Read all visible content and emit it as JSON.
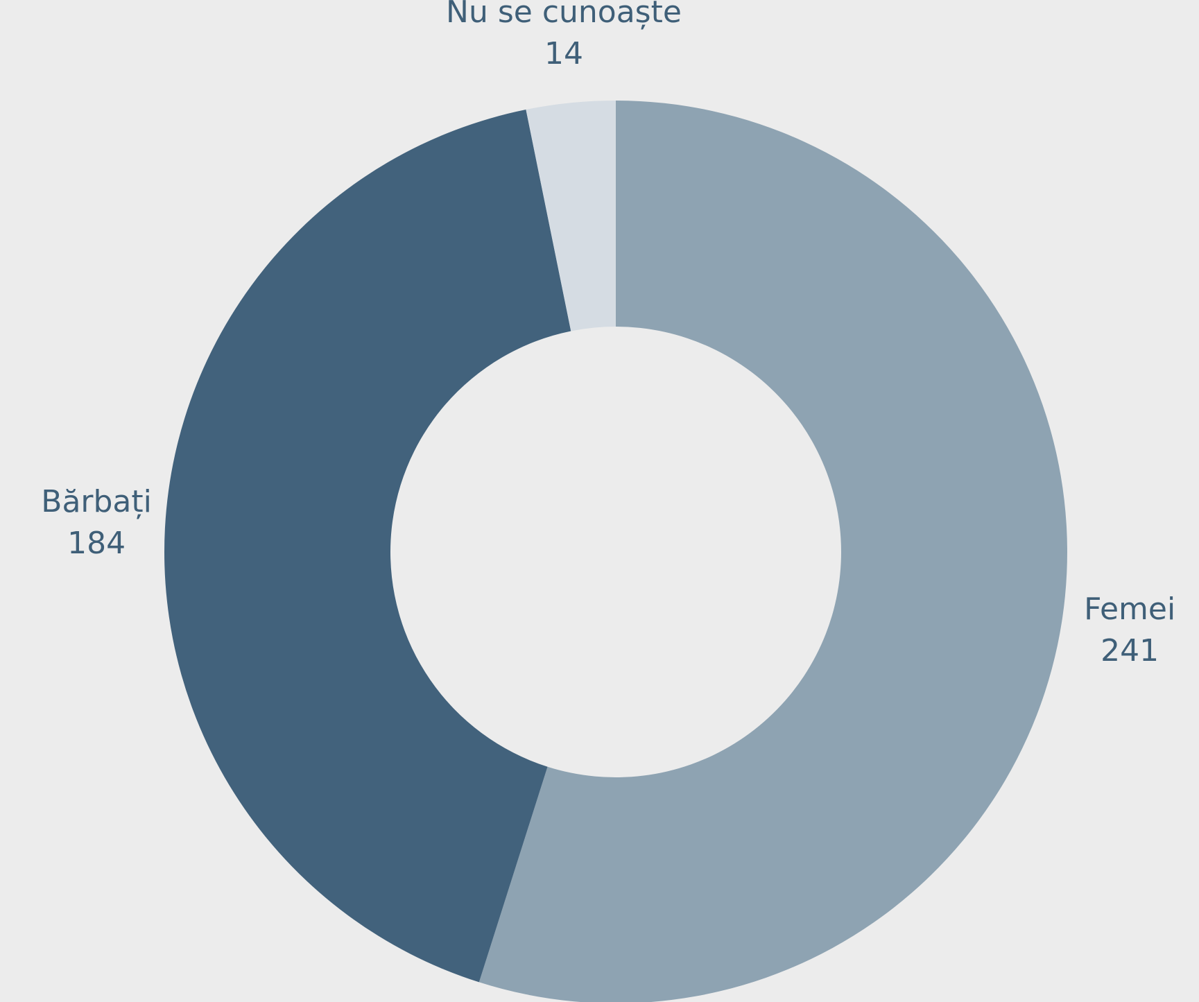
{
  "chart_data": {
    "type": "donut",
    "categories": [
      "Femei",
      "Bărbați",
      "Nu se cunoaște"
    ],
    "values": [
      241,
      184,
      14
    ],
    "colors": [
      "#8ea3b2",
      "#42627c",
      "#d5dce3"
    ]
  }
}
